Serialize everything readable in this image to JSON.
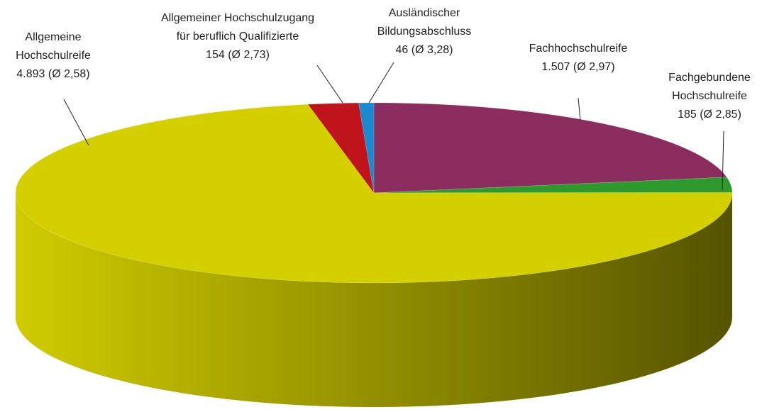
{
  "chart_data": {
    "type": "pie3d",
    "categories": [
      "Allgemeine\nHochschulreife",
      "Allgemeiner Hochschulzugang\nfür beruflich Qualifizierte",
      "Ausländischer\nBildungsabschluss",
      "Fachhochschulreife",
      "Fachgebundene\nHochschulreife"
    ],
    "values": [
      4893,
      154,
      46,
      1507,
      185
    ],
    "value_labels": [
      "4.893 (Ø 2,58)",
      "154 (Ø 2,73)",
      "46 (Ø 3,28)",
      "1.507 (Ø 2,97)",
      "185 (Ø 2,85)"
    ],
    "colors": [
      "#d4d000",
      "#c0141c",
      "#1a8ad0",
      "#8b2d5e",
      "#2e9a2e"
    ]
  }
}
